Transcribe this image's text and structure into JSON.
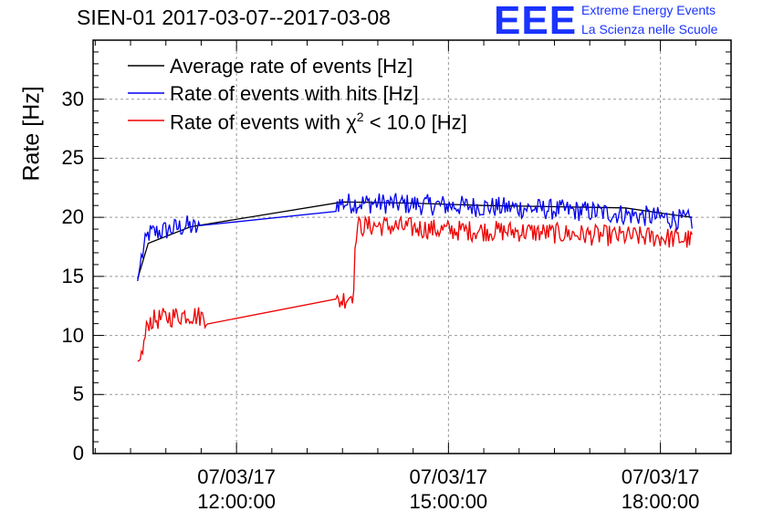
{
  "title": "SIEN-01 2017-03-07--2017-03-08",
  "logo": {
    "mark": "EEE",
    "line1": "Extreme Energy Events",
    "line2": "La Scienza nelle Scuole"
  },
  "chart_data": {
    "type": "line",
    "title": "SIEN-01 2017-03-07--2017-03-08",
    "xlabel": "",
    "ylabel": "Rate [Hz]",
    "ylim": [
      0,
      35
    ],
    "yticks": [
      0,
      5,
      10,
      15,
      20,
      25,
      30
    ],
    "xlim_hours": [
      9.97,
      19.0
    ],
    "xticks": [
      {
        "hour": 12,
        "date": "07/03/17",
        "time": "12:00:00"
      },
      {
        "hour": 15,
        "date": "07/03/17",
        "time": "15:00:00"
      },
      {
        "hour": 18,
        "date": "07/03/17",
        "time": "18:00:00"
      }
    ],
    "grid": true,
    "legend_position": "top-left",
    "series": [
      {
        "name": "Average rate of events [Hz]",
        "legend_text": "Average rate of events [Hz]",
        "color": "#000000",
        "x": [
          10.6,
          10.75,
          11.35,
          13.5,
          14.5,
          15.5,
          16.5,
          17.5,
          18.2,
          18.45
        ],
        "y": [
          14.8,
          17.8,
          19.2,
          21.3,
          21.2,
          21.0,
          20.9,
          20.8,
          20.2,
          20.0
        ],
        "noise": 0
      },
      {
        "name": "Rate of events with hits [Hz]",
        "legend_text": "Rate of events with hits [Hz]",
        "color": "#0000ee",
        "x": [
          10.6,
          10.65,
          10.75,
          11.0,
          11.3,
          11.5,
          13.4,
          14.0,
          15.0,
          16.0,
          17.0,
          18.0,
          18.45
        ],
        "y": [
          14.6,
          16.5,
          18.6,
          18.9,
          19.3,
          18.9,
          21.2,
          21.2,
          21.0,
          20.8,
          20.5,
          20.0,
          19.7
        ],
        "noise": 0.9
      },
      {
        "name": "Rate of events with chi2 < 10.0 [Hz]",
        "legend_text": "Rate of events with χ² < 10.0 [Hz]",
        "color": "#ee0000",
        "x": [
          10.6,
          10.65,
          10.75,
          11.0,
          11.3,
          11.6,
          13.4,
          13.55,
          13.65,
          13.7,
          14.0,
          15.0,
          16.0,
          17.0,
          18.0,
          18.45
        ],
        "y": [
          7.8,
          8.0,
          11.2,
          11.5,
          11.8,
          11.5,
          12.7,
          13.2,
          13.5,
          19.2,
          19.3,
          18.9,
          18.8,
          18.5,
          18.3,
          18.1
        ],
        "noise": 0.9
      }
    ]
  },
  "legend": {
    "items": [
      {
        "label_plain": "Average rate of events [Hz]"
      },
      {
        "label_plain": "Rate of events with hits [Hz]"
      },
      {
        "label_prefix": "Rate of events with ",
        "label_chi": "χ",
        "label_sup": "2",
        "label_suffix": " < 10.0 [Hz]"
      }
    ]
  },
  "y_axis_label": "Rate [Hz]"
}
